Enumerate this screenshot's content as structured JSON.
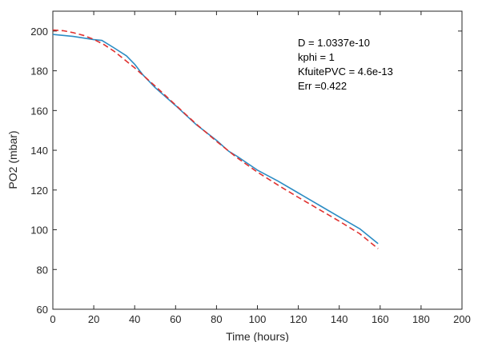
{
  "chart_data": {
    "type": "line",
    "xlabel": "Time (hours)",
    "ylabel": "PO2 (mbar)",
    "xlim": [
      0,
      200
    ],
    "ylim": [
      60,
      210
    ],
    "xticks": [
      0,
      20,
      40,
      60,
      80,
      100,
      120,
      140,
      160,
      180,
      200
    ],
    "yticks": [
      60,
      80,
      100,
      120,
      140,
      160,
      180,
      200
    ],
    "grid": false,
    "annotations": [
      "D = 1.0337e-10",
      "kphi = 1",
      "KfuitePVC = 4.6e-13",
      "Err =0.422"
    ],
    "series": [
      {
        "color": "#2b8cc4",
        "style": "solid",
        "x": [
          0,
          10,
          20,
          24,
          30,
          36,
          40,
          44,
          50,
          60,
          70,
          80,
          86,
          90,
          100,
          110,
          120,
          130,
          140,
          150,
          159
        ],
        "y": [
          198.3,
          197.3,
          195.7,
          195.3,
          191.5,
          187.5,
          183.3,
          178,
          171.5,
          162.5,
          153,
          145,
          139.5,
          137,
          130,
          124.5,
          118.5,
          112.5,
          106.5,
          100.5,
          93
        ]
      },
      {
        "color": "#e0312f",
        "style": "dashed",
        "x": [
          0,
          5,
          10,
          15,
          20,
          25,
          30,
          40,
          50,
          60,
          70,
          80,
          90,
          100,
          110,
          120,
          130,
          140,
          150,
          159
        ],
        "y": [
          200.5,
          200.2,
          199.2,
          197.8,
          195.8,
          193.2,
          189.8,
          181.5,
          172.3,
          162.8,
          153.3,
          144.5,
          136.3,
          129,
          122.5,
          116.3,
          110.3,
          104.3,
          98,
          90.5
        ]
      }
    ]
  }
}
